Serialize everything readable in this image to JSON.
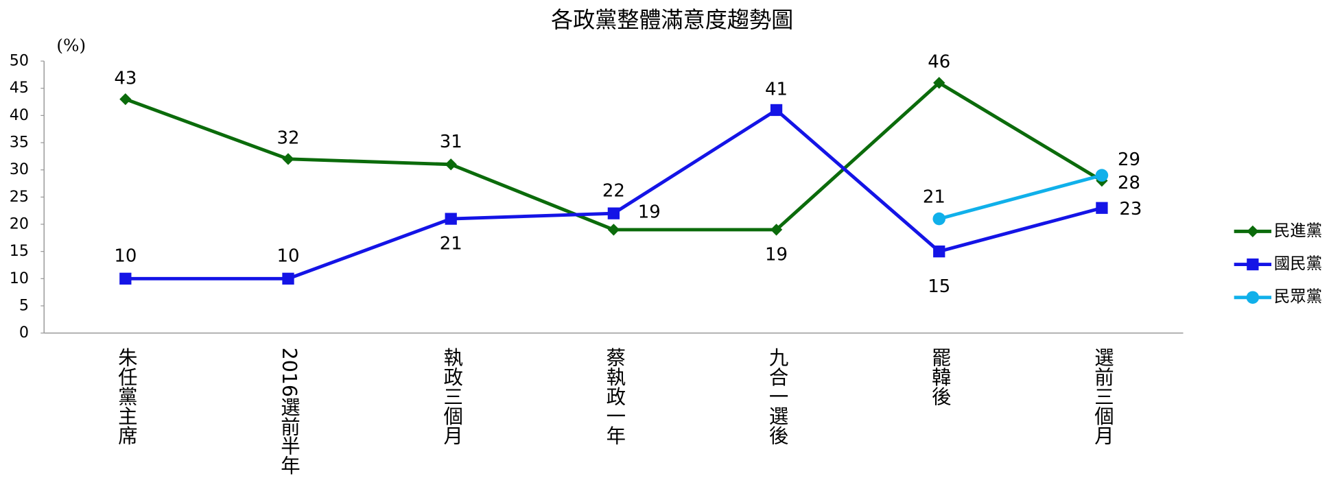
{
  "chart_data": {
    "type": "line",
    "title": "各政黨整體滿意度趨勢圖",
    "y_label": "(%)",
    "categories": [
      "朱任黨主席",
      "2016選前半年",
      "執政三個月",
      "蔡執政一年",
      "九合一選後",
      "罷韓後",
      "選前三個月"
    ],
    "series": [
      {
        "name": "民進黨",
        "color": "#0b6b0b",
        "marker": "diamond",
        "values": [
          43,
          32,
          31,
          19,
          19,
          46,
          28
        ]
      },
      {
        "name": "國民黨",
        "color": "#1414e6",
        "marker": "square",
        "values": [
          10,
          10,
          21,
          22,
          41,
          15,
          23
        ]
      },
      {
        "name": "民眾黨",
        "color": "#10b0ea",
        "marker": "circle",
        "values": [
          null,
          null,
          null,
          null,
          null,
          21,
          29
        ]
      }
    ],
    "ylim": [
      0,
      50
    ],
    "yticks": [
      0,
      5,
      10,
      15,
      20,
      25,
      30,
      35,
      40,
      45,
      50
    ],
    "grid": false,
    "legend": "right"
  }
}
